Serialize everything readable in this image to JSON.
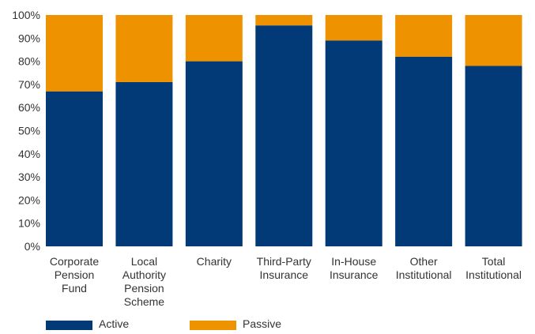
{
  "chart_data": {
    "type": "bar",
    "stacked": true,
    "categories": [
      [
        "Corporate",
        "Pension",
        "Fund"
      ],
      [
        "Local",
        "Authority",
        "Pension",
        "Scheme"
      ],
      [
        "Charity"
      ],
      [
        "Third-Party",
        "Insurance"
      ],
      [
        "In-House",
        "Insurance"
      ],
      [
        "Other",
        "Institutional"
      ],
      [
        "Total",
        "Institutional"
      ]
    ],
    "series": [
      {
        "name": "Active",
        "color": "#013a77",
        "values": [
          67,
          71,
          80,
          95.5,
          89,
          82,
          78
        ]
      },
      {
        "name": "Passive",
        "color": "#ef9200",
        "values": [
          33,
          29,
          20,
          4.5,
          11,
          18,
          22
        ]
      }
    ],
    "ylim": [
      0,
      100
    ],
    "yticks": [
      0,
      10,
      20,
      30,
      40,
      50,
      60,
      70,
      80,
      90,
      100
    ],
    "ytick_labels": [
      "0%",
      "10%",
      "20%",
      "30%",
      "40%",
      "50%",
      "60%",
      "70%",
      "80%",
      "90%",
      "100%"
    ],
    "grid": false,
    "legend_position": "bottom-left",
    "title": "",
    "xlabel": "",
    "ylabel": ""
  }
}
